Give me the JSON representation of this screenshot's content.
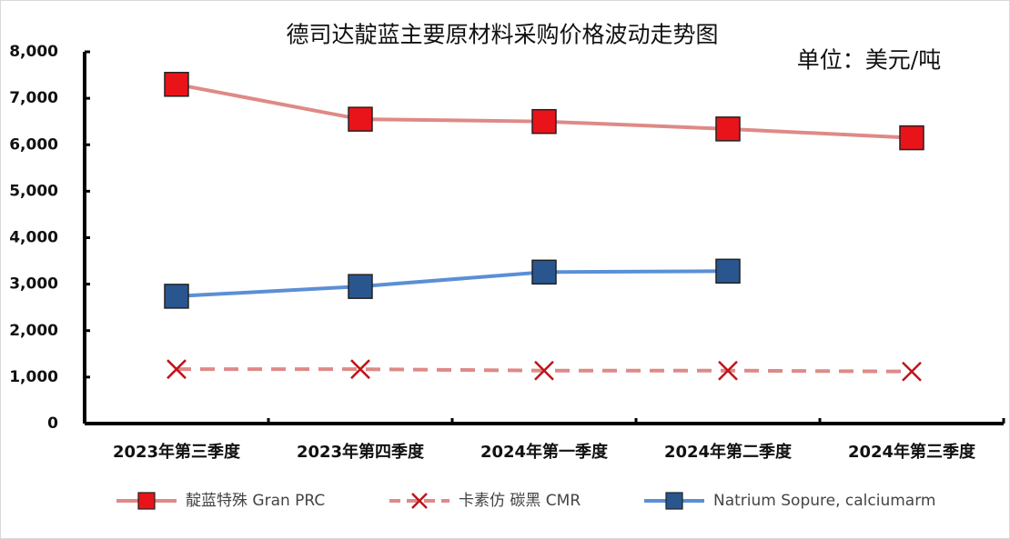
{
  "chart_data": {
    "type": "line",
    "title": "德司达靛蓝主要原材料采购价格波动走势图",
    "annotation": "单位：美元/吨",
    "categories": [
      "2023年第三季度",
      "2023年第四季度",
      "2024年第一季度",
      "2024年第二季度",
      "2024年第三季度"
    ],
    "series": [
      {
        "name": "靛蓝特殊 Gran PRC",
        "color": "#de8a87",
        "marker": "square",
        "marker_color": "#e8141a",
        "dash": false,
        "values": [
          7300,
          6550,
          6500,
          6340,
          6150
        ]
      },
      {
        "name": "卡素仿 碳黑 CMR",
        "color": "#de8a87",
        "marker": "x",
        "marker_color": "#c0141a",
        "dash": true,
        "values": [
          1170,
          1170,
          1140,
          1140,
          1120
        ]
      },
      {
        "name": "Natrium Sopure, calciumarm",
        "color": "#5b8fd6",
        "marker": "square",
        "marker_color": "#2a5690",
        "dash": false,
        "values": [
          2740,
          2950,
          3260,
          3280,
          null
        ]
      }
    ],
    "ylim": [
      0,
      8000
    ],
    "yticks": [
      0,
      {
        "value": 1000,
        "label": "1,000"
      },
      {
        "value": 2000,
        "label": "2,000"
      },
      {
        "value": 3000,
        "label": "3,000"
      },
      {
        "value": 4000,
        "label": "4,000"
      },
      {
        "value": 5000,
        "label": "5,000"
      },
      {
        "value": 6000,
        "label": "6,000"
      },
      {
        "value": 7000,
        "label": "7,000"
      },
      {
        "value": 8000,
        "label": "8,000"
      }
    ],
    "grid": false,
    "legend": "bottom"
  }
}
